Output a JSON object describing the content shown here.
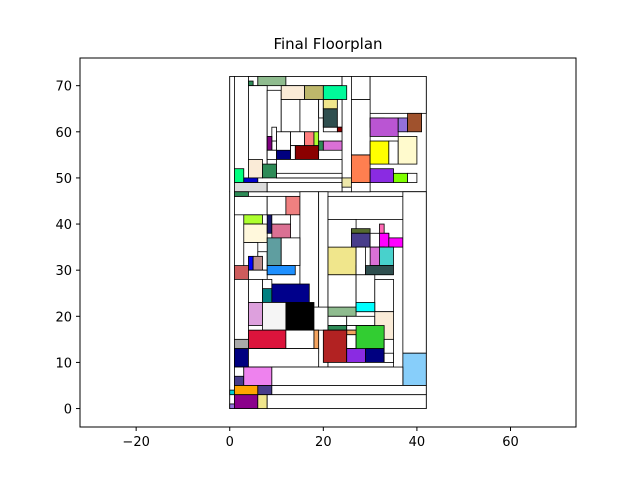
{
  "chart_data": {
    "type": "floorplan",
    "title": "Final Floorplan",
    "xlim": [
      -32,
      74
    ],
    "ylim": [
      -4,
      76
    ],
    "xticks": [
      -20,
      0,
      20,
      40,
      60
    ],
    "yticks": [
      0,
      10,
      20,
      30,
      40,
      50,
      60,
      70
    ],
    "grid": false,
    "rects": [
      {
        "x": 0,
        "y": 47,
        "w": 42,
        "h": 25,
        "color": "#ffffff"
      },
      {
        "x": 0,
        "y": 0,
        "w": 42,
        "h": 47,
        "color": "#ffffff"
      },
      {
        "x": 0,
        "y": 0,
        "w": 1,
        "h": 72,
        "color": "#ffffff"
      },
      {
        "x": 1,
        "y": 47,
        "w": 3,
        "h": 25,
        "color": "#ffffff"
      },
      {
        "x": 4,
        "y": 70,
        "w": 2,
        "h": 2,
        "color": "#ffffff"
      },
      {
        "x": 4,
        "y": 70,
        "w": 1,
        "h": 1,
        "color": "#2e8b57"
      },
      {
        "x": 6,
        "y": 70,
        "w": 6,
        "h": 2,
        "color": "#8fbc8f"
      },
      {
        "x": 12,
        "y": 70,
        "w": 12,
        "h": 2,
        "color": "#ffffff"
      },
      {
        "x": 24,
        "y": 47,
        "w": 2,
        "h": 25,
        "color": "#ffffff"
      },
      {
        "x": 26,
        "y": 67,
        "w": 4,
        "h": 5,
        "color": "#ffffff"
      },
      {
        "x": 30,
        "y": 64,
        "w": 12,
        "h": 8,
        "color": "#ffffff"
      },
      {
        "x": 4,
        "y": 51,
        "w": 4,
        "h": 19,
        "color": "#ffffff"
      },
      {
        "x": 8,
        "y": 52,
        "w": 3,
        "h": 17,
        "color": "#ffffff"
      },
      {
        "x": 11,
        "y": 67,
        "w": 5,
        "h": 3,
        "color": "#faebd7"
      },
      {
        "x": 16,
        "y": 67,
        "w": 4,
        "h": 3,
        "color": "#bdb76b"
      },
      {
        "x": 20,
        "y": 67,
        "w": 5,
        "h": 3,
        "color": "#00fa9a"
      },
      {
        "x": 11,
        "y": 60,
        "w": 4,
        "h": 7,
        "color": "#ffffff"
      },
      {
        "x": 15,
        "y": 60,
        "w": 4,
        "h": 7,
        "color": "#ffffff"
      },
      {
        "x": 19,
        "y": 63,
        "w": 1,
        "h": 4,
        "color": "#ffffff"
      },
      {
        "x": 20,
        "y": 63,
        "w": 3,
        "h": 4,
        "color": "#ffffff"
      },
      {
        "x": 20,
        "y": 60,
        "w": 3,
        "h": 3,
        "color": "#ffffff"
      },
      {
        "x": 20,
        "y": 61,
        "w": 3,
        "h": 2,
        "color": "#2f4f4f"
      },
      {
        "x": 20,
        "y": 61,
        "w": 3,
        "h": 4,
        "color": "#2f4f4f"
      },
      {
        "x": 20,
        "y": 65,
        "w": 3,
        "h": 2,
        "color": "#f0e68c"
      },
      {
        "x": 23,
        "y": 61,
        "w": 1,
        "h": 6,
        "color": "#ffffff"
      },
      {
        "x": 23,
        "y": 60,
        "w": 1,
        "h": 1,
        "color": "#8b0000"
      },
      {
        "x": 9,
        "y": 55,
        "w": 1,
        "h": 6,
        "color": "#ffffff"
      },
      {
        "x": 10,
        "y": 55,
        "w": 3,
        "h": 5,
        "color": "#ffffff"
      },
      {
        "x": 13,
        "y": 57,
        "w": 3,
        "h": 3,
        "color": "#ffffff"
      },
      {
        "x": 16,
        "y": 57,
        "w": 2,
        "h": 3,
        "color": "#ff7f7f"
      },
      {
        "x": 18,
        "y": 57,
        "w": 1,
        "h": 3,
        "color": "#adff2f"
      },
      {
        "x": 9,
        "y": 56,
        "w": 1,
        "h": 2,
        "color": "#ffffff"
      },
      {
        "x": 8,
        "y": 56,
        "w": 1,
        "h": 3,
        "color": "#800080"
      },
      {
        "x": 8,
        "y": 54,
        "w": 2,
        "h": 2,
        "color": "#ffffff"
      },
      {
        "x": 10,
        "y": 54,
        "w": 3,
        "h": 2,
        "color": "#000080"
      },
      {
        "x": 13,
        "y": 54,
        "w": 2,
        "h": 3,
        "color": "#ffffff"
      },
      {
        "x": 14,
        "y": 54,
        "w": 5,
        "h": 3,
        "color": "#8b0000"
      },
      {
        "x": 19,
        "y": 56,
        "w": 1,
        "h": 2,
        "color": "#2e8b57"
      },
      {
        "x": 20,
        "y": 56,
        "w": 4,
        "h": 2,
        "color": "#da70d6"
      },
      {
        "x": 4,
        "y": 50,
        "w": 3,
        "h": 4,
        "color": "#faebd7"
      },
      {
        "x": 7,
        "y": 50,
        "w": 3,
        "h": 3,
        "color": "#2e8b57"
      },
      {
        "x": 10,
        "y": 50,
        "w": 14,
        "h": 4,
        "color": "#ffffff"
      },
      {
        "x": 10,
        "y": 50,
        "w": 14,
        "h": 1,
        "color": "#ffffff"
      },
      {
        "x": 1,
        "y": 49,
        "w": 2,
        "h": 3,
        "color": "#00ff7f"
      },
      {
        "x": 3,
        "y": 49,
        "w": 3,
        "h": 1,
        "color": "#0000cd"
      },
      {
        "x": 1,
        "y": 47,
        "w": 7,
        "h": 2,
        "color": "#dcdcdc"
      },
      {
        "x": 8,
        "y": 47,
        "w": 16,
        "h": 2,
        "color": "#ffffff"
      },
      {
        "x": 24,
        "y": 48,
        "w": 2,
        "h": 2,
        "color": "#eee8aa"
      },
      {
        "x": 26,
        "y": 47,
        "w": 4,
        "h": 2,
        "color": "#ffffff"
      },
      {
        "x": 26,
        "y": 49,
        "w": 4,
        "h": 6,
        "color": "#ff7f50"
      },
      {
        "x": 26,
        "y": 55,
        "w": 4,
        "h": 12,
        "color": "#ffffff"
      },
      {
        "x": 30,
        "y": 61,
        "w": 3,
        "h": 2,
        "color": "#00fa9a"
      },
      {
        "x": 30,
        "y": 59,
        "w": 6,
        "h": 4,
        "color": "#ba55d3"
      },
      {
        "x": 36,
        "y": 60,
        "w": 2,
        "h": 3,
        "color": "#9370db"
      },
      {
        "x": 38,
        "y": 60,
        "w": 3,
        "h": 4,
        "color": "#a0522d"
      },
      {
        "x": 30,
        "y": 53,
        "w": 4,
        "h": 5,
        "color": "#ffff00"
      },
      {
        "x": 34,
        "y": 53,
        "w": 2,
        "h": 5,
        "color": "#ffffff"
      },
      {
        "x": 36,
        "y": 53,
        "w": 4,
        "h": 6,
        "color": "#fffacd"
      },
      {
        "x": 30,
        "y": 49,
        "w": 5,
        "h": 3,
        "color": "#8a2be2"
      },
      {
        "x": 35,
        "y": 49,
        "w": 3,
        "h": 2,
        "color": "#7fff00"
      },
      {
        "x": 38,
        "y": 49,
        "w": 2,
        "h": 2,
        "color": "#ffffff"
      },
      {
        "x": 1,
        "y": 42,
        "w": 7,
        "h": 4,
        "color": "#ffffff"
      },
      {
        "x": 1,
        "y": 46,
        "w": 3,
        "h": 1,
        "color": "#2e8b57"
      },
      {
        "x": 8,
        "y": 42,
        "w": 4,
        "h": 4,
        "color": "#ffffff"
      },
      {
        "x": 12,
        "y": 42,
        "w": 3,
        "h": 4,
        "color": "#f08080"
      },
      {
        "x": 15,
        "y": 0,
        "w": 4,
        "h": 47,
        "color": "#ffffff"
      },
      {
        "x": 19,
        "y": 9,
        "w": 2,
        "h": 38,
        "color": "#ffffff"
      },
      {
        "x": 21,
        "y": 41,
        "w": 16,
        "h": 5,
        "color": "#ffffff"
      },
      {
        "x": 3,
        "y": 40,
        "w": 4,
        "h": 2,
        "color": "#adff2f"
      },
      {
        "x": 3,
        "y": 36,
        "w": 5,
        "h": 4,
        "color": "#fff8dc"
      },
      {
        "x": 8,
        "y": 38,
        "w": 1,
        "h": 4,
        "color": "#191970"
      },
      {
        "x": 9,
        "y": 37,
        "w": 4,
        "h": 3,
        "color": "#db7093"
      },
      {
        "x": 9,
        "y": 40,
        "w": 4,
        "h": 2,
        "color": "#ffffff"
      },
      {
        "x": 3,
        "y": 30,
        "w": 3,
        "h": 6,
        "color": "#ffffff"
      },
      {
        "x": 6,
        "y": 30,
        "w": 2,
        "h": 4,
        "color": "#ffffff"
      },
      {
        "x": 4,
        "y": 30,
        "w": 1,
        "h": 3,
        "color": "#0000ff"
      },
      {
        "x": 5,
        "y": 30,
        "w": 2,
        "h": 3,
        "color": "#bc8f8f"
      },
      {
        "x": 8,
        "y": 31,
        "w": 3,
        "h": 6,
        "color": "#5f9ea0"
      },
      {
        "x": 11,
        "y": 31,
        "w": 4,
        "h": 6,
        "color": "#ffffff"
      },
      {
        "x": 1,
        "y": 28,
        "w": 3,
        "h": 3,
        "color": "#cd5c5c"
      },
      {
        "x": 4,
        "y": 28,
        "w": 4,
        "h": 2,
        "color": "#ffffff"
      },
      {
        "x": 8,
        "y": 29,
        "w": 6,
        "h": 2,
        "color": "#1e90ff"
      },
      {
        "x": 21,
        "y": 29,
        "w": 6,
        "h": 6,
        "color": "#f0e68c"
      },
      {
        "x": 21,
        "y": 35,
        "w": 6,
        "h": 6,
        "color": "#ffffff"
      },
      {
        "x": 26,
        "y": 38,
        "w": 4,
        "h": 1,
        "color": "#556b2f"
      },
      {
        "x": 26,
        "y": 35,
        "w": 4,
        "h": 3,
        "color": "#483d8b"
      },
      {
        "x": 30,
        "y": 35,
        "w": 4,
        "h": 3,
        "color": "#ffffff"
      },
      {
        "x": 32,
        "y": 38,
        "w": 1,
        "h": 2,
        "color": "#ff69b4"
      },
      {
        "x": 32,
        "y": 35,
        "w": 2,
        "h": 3,
        "color": "#ff00ff"
      },
      {
        "x": 34,
        "y": 35,
        "w": 3,
        "h": 2,
        "color": "#ff00ff"
      },
      {
        "x": 30,
        "y": 31,
        "w": 3,
        "h": 4,
        "color": "#da70d6"
      },
      {
        "x": 32,
        "y": 31,
        "w": 3,
        "h": 4,
        "color": "#48d1cc"
      },
      {
        "x": 29,
        "y": 29,
        "w": 6,
        "h": 2,
        "color": "#2f4f4f"
      },
      {
        "x": 27,
        "y": 29,
        "w": 2,
        "h": 2,
        "color": "#ffffff"
      },
      {
        "x": 27,
        "y": 29,
        "w": 2,
        "h": 6,
        "color": "#ffffff"
      },
      {
        "x": 21,
        "y": 21,
        "w": 6,
        "h": 8,
        "color": "#ffffff"
      },
      {
        "x": 27,
        "y": 21,
        "w": 4,
        "h": 8,
        "color": "#ffffff"
      },
      {
        "x": 31,
        "y": 21,
        "w": 4,
        "h": 7,
        "color": "#ffffff"
      },
      {
        "x": 1,
        "y": 15,
        "w": 3,
        "h": 13,
        "color": "#ffffff"
      },
      {
        "x": 4,
        "y": 23,
        "w": 3,
        "h": 5,
        "color": "#ffffff"
      },
      {
        "x": 7,
        "y": 24,
        "w": 2,
        "h": 4,
        "color": "#ffffff"
      },
      {
        "x": 7,
        "y": 23,
        "w": 2,
        "h": 3,
        "color": "#008080"
      },
      {
        "x": 9,
        "y": 23,
        "w": 8,
        "h": 4,
        "color": "#00008b"
      },
      {
        "x": 12,
        "y": 22,
        "w": 3,
        "h": 1,
        "color": "#ff6347"
      },
      {
        "x": 4,
        "y": 18,
        "w": 3,
        "h": 5,
        "color": "#dda0dd"
      },
      {
        "x": 7,
        "y": 17,
        "w": 5,
        "h": 6,
        "color": "#f5f5f5"
      },
      {
        "x": 12,
        "y": 17,
        "w": 6,
        "h": 6,
        "color": "#000000"
      },
      {
        "x": 18,
        "y": 17,
        "w": 3,
        "h": 5,
        "color": "#ffffff"
      },
      {
        "x": 4,
        "y": 13,
        "w": 8,
        "h": 4,
        "color": "#dc143c"
      },
      {
        "x": 12,
        "y": 13,
        "w": 6,
        "h": 4,
        "color": "#ffffff"
      },
      {
        "x": 21,
        "y": 20,
        "w": 6,
        "h": 2,
        "color": "#8fbc8f"
      },
      {
        "x": 21,
        "y": 18,
        "w": 4,
        "h": 2,
        "color": "#ffffff"
      },
      {
        "x": 25,
        "y": 18,
        "w": 6,
        "h": 2,
        "color": "#ffffff"
      },
      {
        "x": 27,
        "y": 21,
        "w": 4,
        "h": 2,
        "color": "#00ffff"
      },
      {
        "x": 21,
        "y": 17,
        "w": 4,
        "h": 1,
        "color": "#2e8b57"
      },
      {
        "x": 25,
        "y": 17,
        "w": 6,
        "h": 1,
        "color": "#ffffff"
      },
      {
        "x": 25,
        "y": 16,
        "w": 4,
        "h": 1,
        "color": "#f4a460"
      },
      {
        "x": 31,
        "y": 15,
        "w": 4,
        "h": 6,
        "color": "#faebd7"
      },
      {
        "x": 18,
        "y": 12,
        "w": 1,
        "h": 5,
        "color": "#f4a460"
      },
      {
        "x": 20,
        "y": 10,
        "w": 5,
        "h": 7,
        "color": "#b22222"
      },
      {
        "x": 25,
        "y": 13,
        "w": 2,
        "h": 3,
        "color": "#ffffff"
      },
      {
        "x": 25,
        "y": 10,
        "w": 2,
        "h": 3,
        "color": "#ffffff"
      },
      {
        "x": 25,
        "y": 10,
        "w": 4,
        "h": 3,
        "color": "#8a2be2"
      },
      {
        "x": 27,
        "y": 13,
        "w": 6,
        "h": 5,
        "color": "#32cd32"
      },
      {
        "x": 29,
        "y": 10,
        "w": 4,
        "h": 3,
        "color": "#000080"
      },
      {
        "x": 33,
        "y": 10,
        "w": 2,
        "h": 5,
        "color": "#ffffff"
      },
      {
        "x": 33,
        "y": 10,
        "w": 2,
        "h": 2,
        "color": "#ffffff"
      },
      {
        "x": 37,
        "y": 12,
        "w": 5,
        "h": 35,
        "color": "#ffffff"
      },
      {
        "x": 37,
        "y": 5,
        "w": 5,
        "h": 7,
        "color": "#87cefa"
      },
      {
        "x": 1,
        "y": 13,
        "w": 3,
        "h": 2,
        "color": "#a9a9a9"
      },
      {
        "x": 1,
        "y": 9,
        "w": 3,
        "h": 4,
        "color": "#000080"
      },
      {
        "x": 4,
        "y": 9,
        "w": 15,
        "h": 4,
        "color": "#ffffff"
      },
      {
        "x": 21,
        "y": 9,
        "w": 14,
        "h": 1,
        "color": "#ffffff"
      },
      {
        "x": 1,
        "y": 5,
        "w": 2,
        "h": 4,
        "color": "#ffffff"
      },
      {
        "x": 1,
        "y": 5,
        "w": 2,
        "h": 2,
        "color": "#483d8b"
      },
      {
        "x": 3,
        "y": 5,
        "w": 6,
        "h": 4,
        "color": "#ee82ee"
      },
      {
        "x": 9,
        "y": 5,
        "w": 28,
        "h": 4,
        "color": "#ffffff"
      },
      {
        "x": 0,
        "y": 3,
        "w": 1,
        "h": 1,
        "color": "#00ced1"
      },
      {
        "x": 1,
        "y": 3,
        "w": 5,
        "h": 2,
        "color": "#ffa500"
      },
      {
        "x": 6,
        "y": 3,
        "w": 3,
        "h": 2,
        "color": "#483d8b"
      },
      {
        "x": 9,
        "y": 3,
        "w": 33,
        "h": 2,
        "color": "#ffffff"
      },
      {
        "x": 0,
        "y": 0,
        "w": 1,
        "h": 1,
        "color": "#9370db"
      },
      {
        "x": 1,
        "y": 0,
        "w": 5,
        "h": 3,
        "color": "#8b008b"
      },
      {
        "x": 6,
        "y": 0,
        "w": 2,
        "h": 3,
        "color": "#f0e68c"
      },
      {
        "x": 8,
        "y": 0,
        "w": 34,
        "h": 3,
        "color": "#ffffff"
      }
    ]
  }
}
